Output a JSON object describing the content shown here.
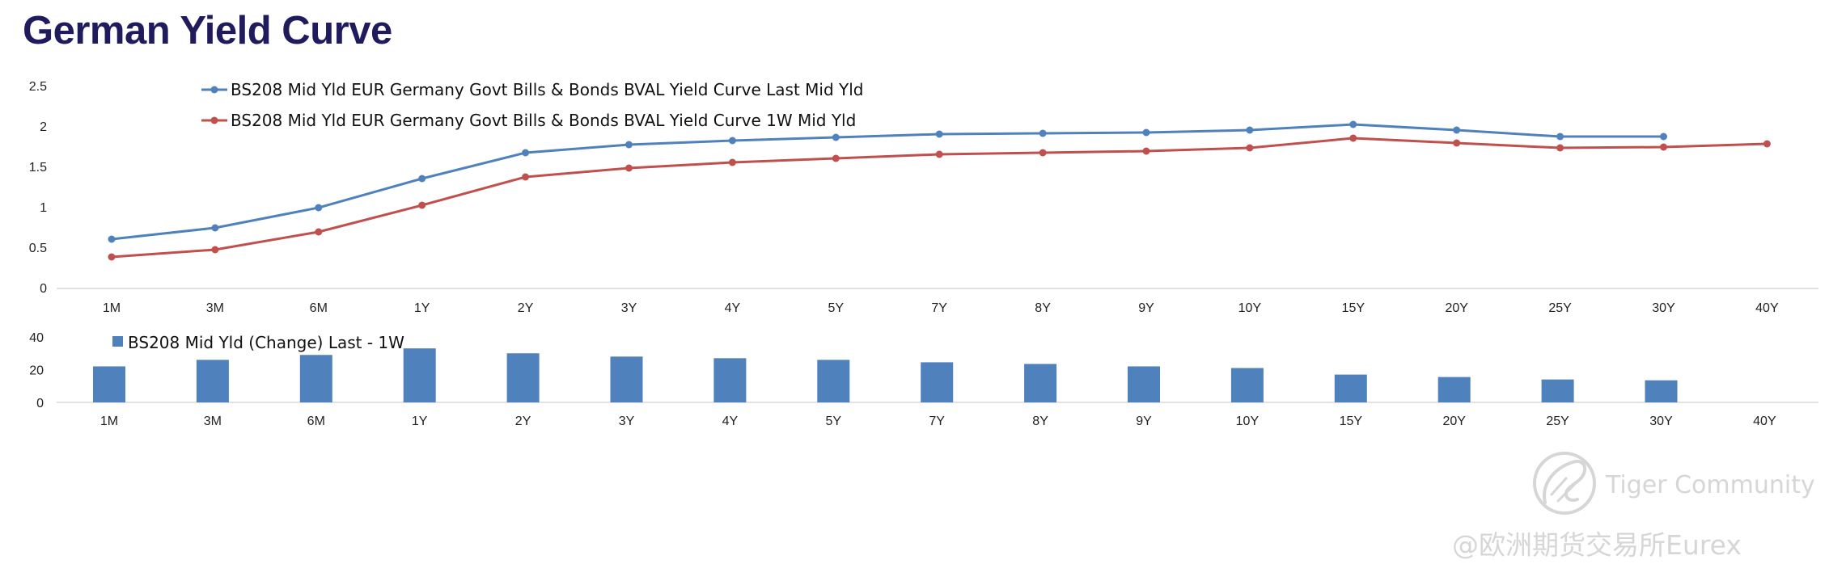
{
  "page": {
    "title": "German Yield Curve"
  },
  "colors": {
    "title": "#1f1b5c",
    "series_last": "#4f81bd",
    "series_1w": "#c0504d",
    "bars": "#4f81bd",
    "axis": "#d9d9d9",
    "watermark": "#d2d2d2"
  },
  "watermark": {
    "brand": "Tiger Community",
    "handle": "@欧洲期货交易所Eurex",
    "logo_icon": "tiger-community-logo-icon"
  },
  "chart_data": [
    {
      "type": "line",
      "title": "",
      "categories": [
        "1M",
        "3M",
        "6M",
        "1Y",
        "2Y",
        "3Y",
        "4Y",
        "5Y",
        "7Y",
        "8Y",
        "9Y",
        "10Y",
        "15Y",
        "20Y",
        "25Y",
        "30Y",
        "40Y"
      ],
      "y_ticks": [
        "0",
        "0.5",
        "1",
        "1.5",
        "2",
        "2.5"
      ],
      "ylim": [
        0,
        2.5
      ],
      "grid": false,
      "legend_position": "top-left",
      "series": [
        {
          "name": "BS208 Mid Yld EUR Germany Govt Bills & Bonds BVAL Yield Curve Last Mid Yld",
          "color": "#4f81bd",
          "values": [
            0.61,
            0.75,
            1.0,
            1.36,
            1.68,
            1.78,
            1.83,
            1.87,
            1.91,
            1.92,
            1.93,
            1.96,
            2.03,
            1.96,
            1.88,
            1.88,
            null
          ]
        },
        {
          "name": "BS208 Mid Yld EUR Germany Govt Bills & Bonds BVAL Yield Curve 1W Mid Yld",
          "color": "#c0504d",
          "values": [
            0.39,
            0.48,
            0.7,
            1.03,
            1.38,
            1.49,
            1.56,
            1.61,
            1.66,
            1.68,
            1.7,
            1.74,
            1.86,
            1.8,
            1.74,
            1.75,
            1.79
          ]
        }
      ]
    },
    {
      "type": "bar",
      "title": "",
      "categories": [
        "1M",
        "3M",
        "6M",
        "1Y",
        "2Y",
        "3Y",
        "4Y",
        "5Y",
        "7Y",
        "8Y",
        "9Y",
        "10Y",
        "15Y",
        "20Y",
        "25Y",
        "30Y",
        "40Y"
      ],
      "y_ticks": [
        "0",
        "20",
        "40"
      ],
      "ylim": [
        0,
        40
      ],
      "grid": false,
      "legend_position": "top-left",
      "series": [
        {
          "name": "BS208 Mid Yld (Change) Last - 1W",
          "color": "#4f81bd",
          "values": [
            22,
            26,
            29,
            33,
            30,
            28,
            27,
            26,
            24.5,
            23.5,
            22,
            21,
            17,
            15.5,
            14,
            13.5,
            null
          ]
        }
      ]
    }
  ]
}
